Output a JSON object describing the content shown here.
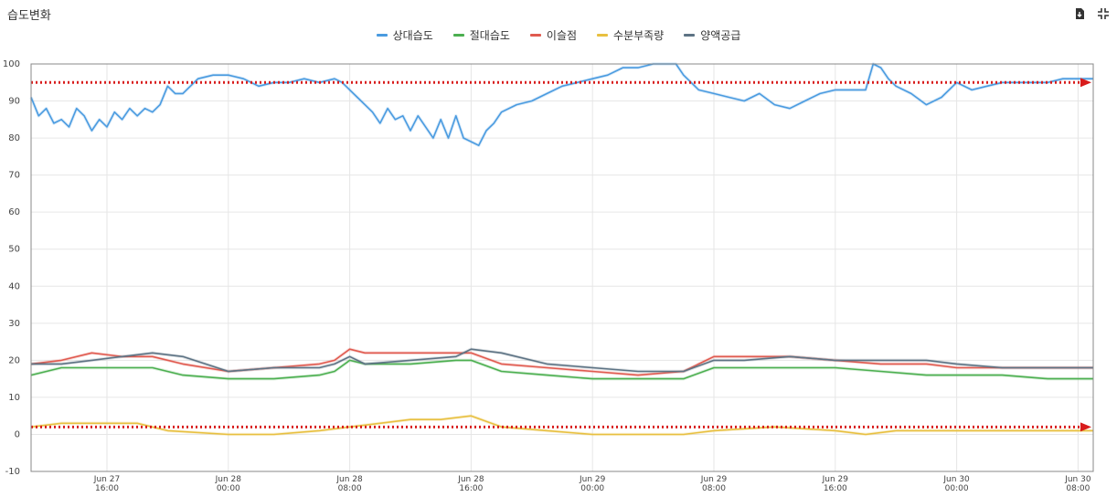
{
  "header": {
    "title": "습도변화"
  },
  "toolbar": {
    "export_icon": "file-export-icon",
    "collapse_icon": "compress-icon"
  },
  "chart_data": {
    "type": "line",
    "title": "습도변화",
    "ylim": [
      -10,
      100
    ],
    "yticks": [
      -10,
      0,
      10,
      20,
      30,
      40,
      50,
      60,
      70,
      80,
      90,
      100
    ],
    "x_range": [
      "2024-06-27T11:00",
      "2024-06-30T09:00"
    ],
    "xticks": [
      {
        "x": "2024-06-27T16:00",
        "line1": "Jun 27",
        "line2": "16:00"
      },
      {
        "x": "2024-06-28T00:00",
        "line1": "Jun 28",
        "line2": "00:00"
      },
      {
        "x": "2024-06-28T08:00",
        "line1": "Jun 28",
        "line2": "08:00"
      },
      {
        "x": "2024-06-28T16:00",
        "line1": "Jun 28",
        "line2": "16:00"
      },
      {
        "x": "2024-06-29T00:00",
        "line1": "Jun 29",
        "line2": "00:00"
      },
      {
        "x": "2024-06-29T08:00",
        "line1": "Jun 29",
        "line2": "08:00"
      },
      {
        "x": "2024-06-29T16:00",
        "line1": "Jun 29",
        "line2": "16:00"
      },
      {
        "x": "2024-06-30T00:00",
        "line1": "Jun 30",
        "line2": "00:00"
      },
      {
        "x": "2024-06-30T08:00",
        "line1": "Jun 30",
        "line2": "08:00"
      }
    ],
    "grid": true,
    "legend_position": "top-center",
    "series": [
      {
        "name": "상대습도",
        "color": "#4a9be0",
        "points": [
          [
            "2024-06-27T11:00",
            91
          ],
          [
            "2024-06-27T11:30",
            86
          ],
          [
            "2024-06-27T12:00",
            88
          ],
          [
            "2024-06-27T12:30",
            84
          ],
          [
            "2024-06-27T13:00",
            85
          ],
          [
            "2024-06-27T13:30",
            83
          ],
          [
            "2024-06-27T14:00",
            88
          ],
          [
            "2024-06-27T14:30",
            86
          ],
          [
            "2024-06-27T15:00",
            82
          ],
          [
            "2024-06-27T15:30",
            85
          ],
          [
            "2024-06-27T16:00",
            83
          ],
          [
            "2024-06-27T16:30",
            87
          ],
          [
            "2024-06-27T17:00",
            85
          ],
          [
            "2024-06-27T17:30",
            88
          ],
          [
            "2024-06-27T18:00",
            86
          ],
          [
            "2024-06-27T18:30",
            88
          ],
          [
            "2024-06-27T19:00",
            87
          ],
          [
            "2024-06-27T19:30",
            89
          ],
          [
            "2024-06-27T20:00",
            94
          ],
          [
            "2024-06-27T20:30",
            92
          ],
          [
            "2024-06-27T21:00",
            92
          ],
          [
            "2024-06-27T21:30",
            94
          ],
          [
            "2024-06-27T22:00",
            96
          ],
          [
            "2024-06-27T23:00",
            97
          ],
          [
            "2024-06-28T00:00",
            97
          ],
          [
            "2024-06-28T01:00",
            96
          ],
          [
            "2024-06-28T02:00",
            94
          ],
          [
            "2024-06-28T03:00",
            95
          ],
          [
            "2024-06-28T04:00",
            95
          ],
          [
            "2024-06-28T05:00",
            96
          ],
          [
            "2024-06-28T06:00",
            95
          ],
          [
            "2024-06-28T07:00",
            96
          ],
          [
            "2024-06-28T07:30",
            95
          ],
          [
            "2024-06-28T08:00",
            93
          ],
          [
            "2024-06-28T08:30",
            91
          ],
          [
            "2024-06-28T09:00",
            89
          ],
          [
            "2024-06-28T09:30",
            87
          ],
          [
            "2024-06-28T10:00",
            84
          ],
          [
            "2024-06-28T10:30",
            88
          ],
          [
            "2024-06-28T11:00",
            85
          ],
          [
            "2024-06-28T11:30",
            86
          ],
          [
            "2024-06-28T12:00",
            82
          ],
          [
            "2024-06-28T12:30",
            86
          ],
          [
            "2024-06-28T13:00",
            83
          ],
          [
            "2024-06-28T13:30",
            80
          ],
          [
            "2024-06-28T14:00",
            85
          ],
          [
            "2024-06-28T14:30",
            80
          ],
          [
            "2024-06-28T15:00",
            86
          ],
          [
            "2024-06-28T15:30",
            80
          ],
          [
            "2024-06-28T16:00",
            79
          ],
          [
            "2024-06-28T16:30",
            78
          ],
          [
            "2024-06-28T17:00",
            82
          ],
          [
            "2024-06-28T17:30",
            84
          ],
          [
            "2024-06-28T18:00",
            87
          ],
          [
            "2024-06-28T19:00",
            89
          ],
          [
            "2024-06-28T20:00",
            90
          ],
          [
            "2024-06-28T21:00",
            92
          ],
          [
            "2024-06-28T22:00",
            94
          ],
          [
            "2024-06-28T23:00",
            95
          ],
          [
            "2024-06-29T00:00",
            96
          ],
          [
            "2024-06-29T01:00",
            97
          ],
          [
            "2024-06-29T02:00",
            99
          ],
          [
            "2024-06-29T03:00",
            99
          ],
          [
            "2024-06-29T04:00",
            100
          ],
          [
            "2024-06-29T05:00",
            100
          ],
          [
            "2024-06-29T05:30",
            100
          ],
          [
            "2024-06-29T06:00",
            97
          ],
          [
            "2024-06-29T07:00",
            93
          ],
          [
            "2024-06-29T08:00",
            92
          ],
          [
            "2024-06-29T09:00",
            91
          ],
          [
            "2024-06-29T10:00",
            90
          ],
          [
            "2024-06-29T11:00",
            92
          ],
          [
            "2024-06-29T12:00",
            89
          ],
          [
            "2024-06-29T13:00",
            88
          ],
          [
            "2024-06-29T14:00",
            90
          ],
          [
            "2024-06-29T15:00",
            92
          ],
          [
            "2024-06-29T16:00",
            93
          ],
          [
            "2024-06-29T17:00",
            93
          ],
          [
            "2024-06-29T18:00",
            93
          ],
          [
            "2024-06-29T18:30",
            100
          ],
          [
            "2024-06-29T19:00",
            99
          ],
          [
            "2024-06-29T19:30",
            96
          ],
          [
            "2024-06-29T20:00",
            94
          ],
          [
            "2024-06-29T21:00",
            92
          ],
          [
            "2024-06-29T22:00",
            89
          ],
          [
            "2024-06-29T23:00",
            91
          ],
          [
            "2024-06-30T00:00",
            95
          ],
          [
            "2024-06-30T01:00",
            93
          ],
          [
            "2024-06-30T02:00",
            94
          ],
          [
            "2024-06-30T03:00",
            95
          ],
          [
            "2024-06-30T04:00",
            95
          ],
          [
            "2024-06-30T05:00",
            95
          ],
          [
            "2024-06-30T06:00",
            95
          ],
          [
            "2024-06-30T07:00",
            96
          ],
          [
            "2024-06-30T08:00",
            96
          ],
          [
            "2024-06-30T09:00",
            96
          ]
        ]
      },
      {
        "name": "절대습도",
        "color": "#4caf50",
        "points": [
          [
            "2024-06-27T11:00",
            16
          ],
          [
            "2024-06-27T13:00",
            18
          ],
          [
            "2024-06-27T15:00",
            18
          ],
          [
            "2024-06-27T17:00",
            18
          ],
          [
            "2024-06-27T19:00",
            18
          ],
          [
            "2024-06-27T21:00",
            16
          ],
          [
            "2024-06-28T00:00",
            15
          ],
          [
            "2024-06-28T03:00",
            15
          ],
          [
            "2024-06-28T06:00",
            16
          ],
          [
            "2024-06-28T07:00",
            17
          ],
          [
            "2024-06-28T08:00",
            20
          ],
          [
            "2024-06-28T09:00",
            19
          ],
          [
            "2024-06-28T12:00",
            19
          ],
          [
            "2024-06-28T15:00",
            20
          ],
          [
            "2024-06-28T16:00",
            20
          ],
          [
            "2024-06-28T18:00",
            17
          ],
          [
            "2024-06-28T21:00",
            16
          ],
          [
            "2024-06-29T00:00",
            15
          ],
          [
            "2024-06-29T03:00",
            15
          ],
          [
            "2024-06-29T06:00",
            15
          ],
          [
            "2024-06-29T08:00",
            18
          ],
          [
            "2024-06-29T10:00",
            18
          ],
          [
            "2024-06-29T13:00",
            18
          ],
          [
            "2024-06-29T16:00",
            18
          ],
          [
            "2024-06-29T19:00",
            17
          ],
          [
            "2024-06-29T22:00",
            16
          ],
          [
            "2024-06-30T00:00",
            16
          ],
          [
            "2024-06-30T03:00",
            16
          ],
          [
            "2024-06-30T06:00",
            15
          ],
          [
            "2024-06-30T09:00",
            15
          ]
        ]
      },
      {
        "name": "이슬점",
        "color": "#e05a4f",
        "points": [
          [
            "2024-06-27T11:00",
            19
          ],
          [
            "2024-06-27T13:00",
            20
          ],
          [
            "2024-06-27T15:00",
            22
          ],
          [
            "2024-06-27T17:00",
            21
          ],
          [
            "2024-06-27T19:00",
            21
          ],
          [
            "2024-06-27T21:00",
            19
          ],
          [
            "2024-06-28T00:00",
            17
          ],
          [
            "2024-06-28T03:00",
            18
          ],
          [
            "2024-06-28T06:00",
            19
          ],
          [
            "2024-06-28T07:00",
            20
          ],
          [
            "2024-06-28T08:00",
            23
          ],
          [
            "2024-06-28T09:00",
            22
          ],
          [
            "2024-06-28T12:00",
            22
          ],
          [
            "2024-06-28T15:00",
            22
          ],
          [
            "2024-06-28T16:00",
            22
          ],
          [
            "2024-06-28T18:00",
            19
          ],
          [
            "2024-06-28T21:00",
            18
          ],
          [
            "2024-06-29T00:00",
            17
          ],
          [
            "2024-06-29T03:00",
            16
          ],
          [
            "2024-06-29T06:00",
            17
          ],
          [
            "2024-06-29T08:00",
            21
          ],
          [
            "2024-06-29T10:00",
            21
          ],
          [
            "2024-06-29T13:00",
            21
          ],
          [
            "2024-06-29T16:00",
            20
          ],
          [
            "2024-06-29T19:00",
            19
          ],
          [
            "2024-06-29T22:00",
            19
          ],
          [
            "2024-06-30T00:00",
            18
          ],
          [
            "2024-06-30T03:00",
            18
          ],
          [
            "2024-06-30T06:00",
            18
          ],
          [
            "2024-06-30T09:00",
            18
          ]
        ]
      },
      {
        "name": "수분부족량",
        "color": "#e8c040",
        "points": [
          [
            "2024-06-27T11:00",
            2
          ],
          [
            "2024-06-27T13:00",
            3
          ],
          [
            "2024-06-27T15:00",
            3
          ],
          [
            "2024-06-27T16:00",
            3
          ],
          [
            "2024-06-27T18:00",
            3
          ],
          [
            "2024-06-27T20:00",
            1
          ],
          [
            "2024-06-28T00:00",
            0
          ],
          [
            "2024-06-28T03:00",
            0
          ],
          [
            "2024-06-28T06:00",
            1
          ],
          [
            "2024-06-28T08:00",
            2
          ],
          [
            "2024-06-28T10:00",
            3
          ],
          [
            "2024-06-28T12:00",
            4
          ],
          [
            "2024-06-28T14:00",
            4
          ],
          [
            "2024-06-28T16:00",
            5
          ],
          [
            "2024-06-28T18:00",
            2
          ],
          [
            "2024-06-28T21:00",
            1
          ],
          [
            "2024-06-29T00:00",
            0
          ],
          [
            "2024-06-29T04:00",
            0
          ],
          [
            "2024-06-29T06:00",
            0
          ],
          [
            "2024-06-29T08:00",
            1
          ],
          [
            "2024-06-29T12:00",
            2
          ],
          [
            "2024-06-29T16:00",
            1
          ],
          [
            "2024-06-29T18:00",
            0
          ],
          [
            "2024-06-29T20:00",
            1
          ],
          [
            "2024-06-29T23:00",
            1
          ],
          [
            "2024-06-30T03:00",
            1
          ],
          [
            "2024-06-30T06:00",
            1
          ],
          [
            "2024-06-30T09:00",
            1
          ]
        ]
      },
      {
        "name": "양액공급",
        "color": "#5d7384",
        "points": [
          [
            "2024-06-27T11:00",
            19
          ],
          [
            "2024-06-27T13:00",
            19
          ],
          [
            "2024-06-27T15:00",
            20
          ],
          [
            "2024-06-27T17:00",
            21
          ],
          [
            "2024-06-27T19:00",
            22
          ],
          [
            "2024-06-27T21:00",
            21
          ],
          [
            "2024-06-28T00:00",
            17
          ],
          [
            "2024-06-28T03:00",
            18
          ],
          [
            "2024-06-28T06:00",
            18
          ],
          [
            "2024-06-28T07:00",
            19
          ],
          [
            "2024-06-28T08:00",
            21
          ],
          [
            "2024-06-28T09:00",
            19
          ],
          [
            "2024-06-28T12:00",
            20
          ],
          [
            "2024-06-28T15:00",
            21
          ],
          [
            "2024-06-28T16:00",
            23
          ],
          [
            "2024-06-28T18:00",
            22
          ],
          [
            "2024-06-28T21:00",
            19
          ],
          [
            "2024-06-29T00:00",
            18
          ],
          [
            "2024-06-29T03:00",
            17
          ],
          [
            "2024-06-29T06:00",
            17
          ],
          [
            "2024-06-29T08:00",
            20
          ],
          [
            "2024-06-29T10:00",
            20
          ],
          [
            "2024-06-29T13:00",
            21
          ],
          [
            "2024-06-29T16:00",
            20
          ],
          [
            "2024-06-29T19:00",
            20
          ],
          [
            "2024-06-29T22:00",
            20
          ],
          [
            "2024-06-30T00:00",
            19
          ],
          [
            "2024-06-30T03:00",
            18
          ],
          [
            "2024-06-30T06:00",
            18
          ],
          [
            "2024-06-30T09:00",
            18
          ]
        ]
      }
    ],
    "reference_lines": [
      {
        "y": 95,
        "color": "#d81c1c",
        "style": "dotted-arrow"
      },
      {
        "y": 2,
        "color": "#d81c1c",
        "style": "dotted-arrow"
      }
    ]
  }
}
